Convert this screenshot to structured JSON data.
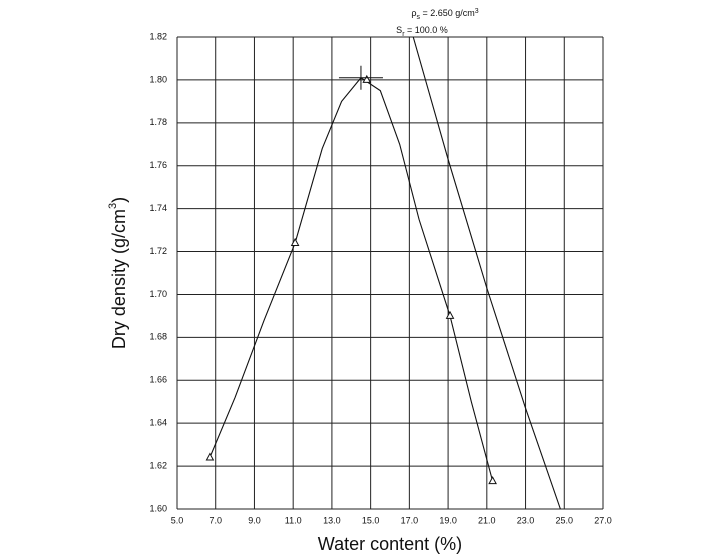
{
  "chart_data": {
    "type": "line",
    "x_label": "Water content (%)",
    "y_label": {
      "text": "Dry density (g/cm",
      "sup": "3",
      "end": ")"
    },
    "annotations": [
      {
        "symbol": "ρ",
        "sub": "s",
        "text": " = 2.650 g/cm",
        "sup": "3"
      },
      {
        "symbol": "S",
        "sub": "r",
        "text": " = 100.0 %"
      }
    ],
    "xlim": [
      5,
      27
    ],
    "ylim": [
      1.6,
      1.82
    ],
    "xticks": [
      {
        "value": 5,
        "label": "5.0"
      },
      {
        "value": 7,
        "label": "7.0"
      },
      {
        "value": 9,
        "label": "9.0"
      },
      {
        "value": 11,
        "label": "11.0"
      },
      {
        "value": 13,
        "label": "13.0"
      },
      {
        "value": 15,
        "label": "15.0"
      },
      {
        "value": 17,
        "label": "17.0"
      },
      {
        "value": 19,
        "label": "19.0"
      },
      {
        "value": 21,
        "label": "21.0"
      },
      {
        "value": 23,
        "label": "23.0"
      },
      {
        "value": 25,
        "label": "25.0"
      },
      {
        "value": 27,
        "label": "27.0"
      }
    ],
    "yticks": [
      {
        "value": 1.6,
        "label": "1.60"
      },
      {
        "value": 1.62,
        "label": "1.62"
      },
      {
        "value": 1.64,
        "label": "1.64"
      },
      {
        "value": 1.66,
        "label": "1.66"
      },
      {
        "value": 1.68,
        "label": "1.68"
      },
      {
        "value": 1.7,
        "label": "1.70"
      },
      {
        "value": 1.72,
        "label": "1.72"
      },
      {
        "value": 1.74,
        "label": "1.74"
      },
      {
        "value": 1.76,
        "label": "1.76"
      },
      {
        "value": 1.78,
        "label": "1.78"
      },
      {
        "value": 1.8,
        "label": "1.80"
      },
      {
        "value": 1.82,
        "label": "1.82"
      }
    ],
    "grid": true,
    "color": "#111111",
    "points": {
      "x": [
        6.7,
        11.1,
        14.8,
        19.1,
        21.3
      ],
      "values": [
        1.624,
        1.724,
        1.8,
        1.69,
        1.613
      ]
    },
    "curve": {
      "x": [
        6.7,
        8,
        9.5,
        11.1,
        12.5,
        13.5,
        14.5,
        15.5,
        16.5,
        17.5,
        19.1,
        20.2,
        21.3
      ],
      "values": [
        1.624,
        1.652,
        1.688,
        1.724,
        1.768,
        1.79,
        1.801,
        1.795,
        1.77,
        1.735,
        1.69,
        1.65,
        1.613
      ]
    },
    "zav_line": {
      "x": [
        17.2,
        19,
        21,
        23,
        24.8
      ],
      "values": [
        1.82,
        1.763,
        1.703,
        1.647,
        1.6
      ]
    },
    "peak": {
      "x": 14.5,
      "value": 1.801
    }
  }
}
